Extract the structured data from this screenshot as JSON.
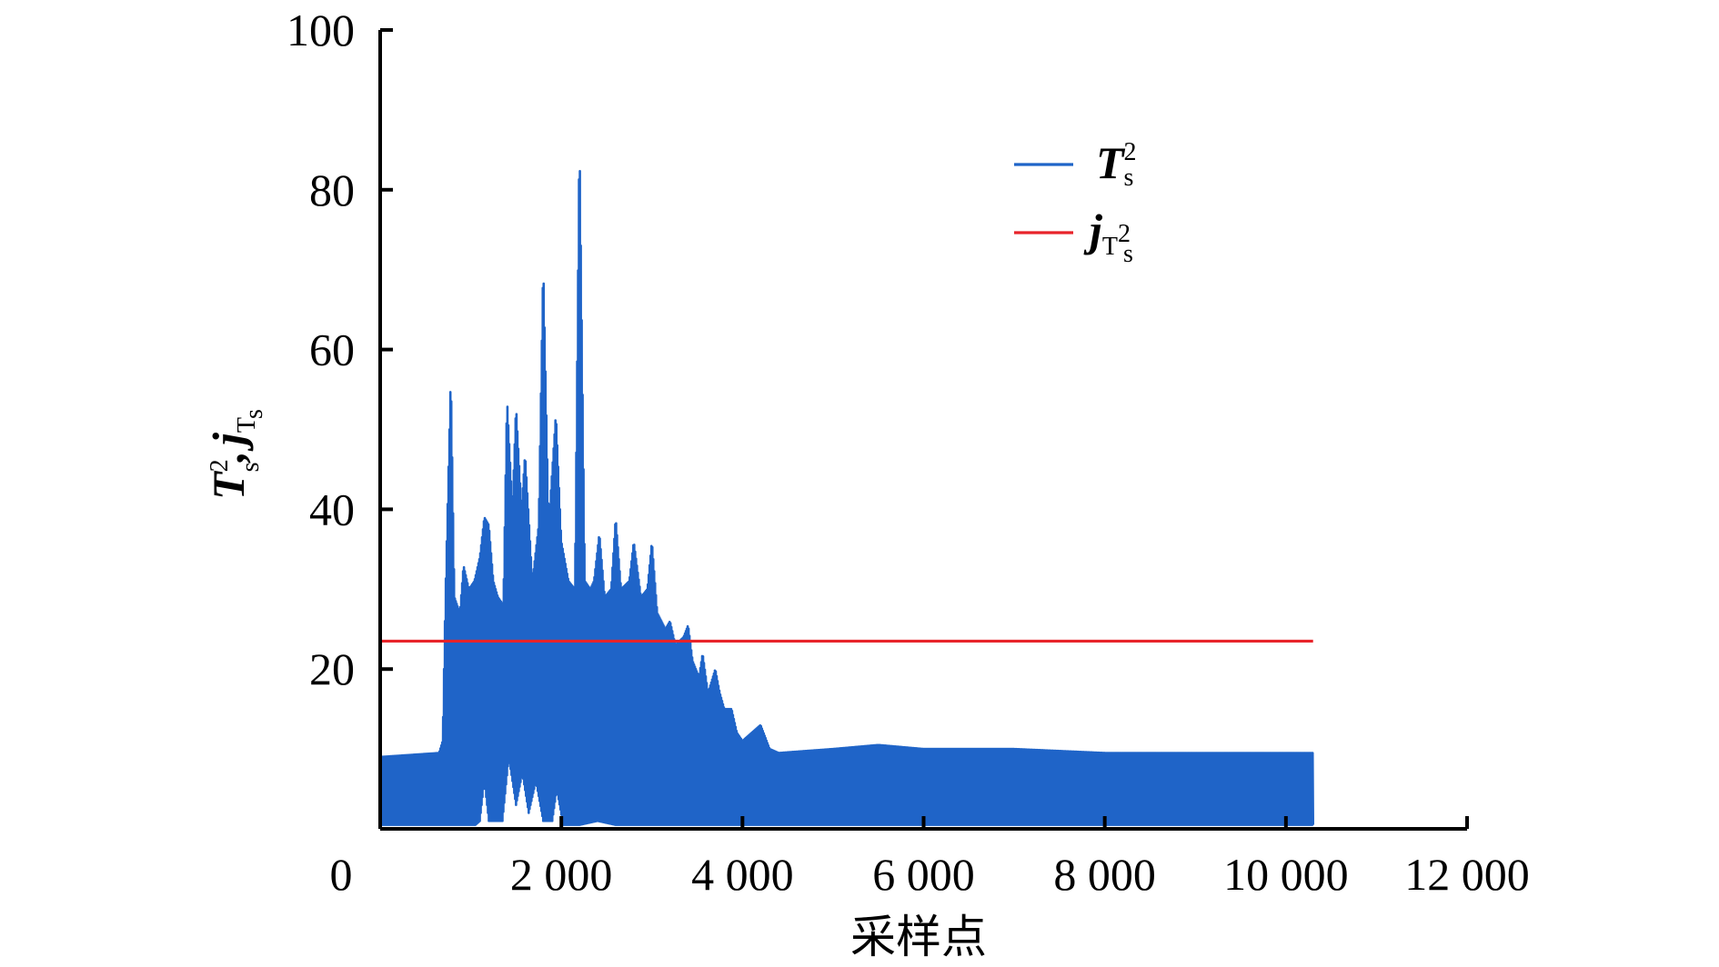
{
  "chart_data": {
    "type": "line",
    "title": "",
    "xlabel": "采样点",
    "ylabel": "T_s^2 , j_Ts^2",
    "xlim": [
      0,
      12000
    ],
    "ylim": [
      0,
      100
    ],
    "x_ticks": [
      {
        "value": 0,
        "label": "0"
      },
      {
        "value": 2000,
        "label": "2 000"
      },
      {
        "value": 4000,
        "label": "4 000"
      },
      {
        "value": 6000,
        "label": "6 000"
      },
      {
        "value": 8000,
        "label": "8 000"
      },
      {
        "value": 10000,
        "label": "10 000"
      },
      {
        "value": 12000,
        "label": "12 000"
      }
    ],
    "y_ticks": [
      {
        "value": 20,
        "label": "20"
      },
      {
        "value": 40,
        "label": "40"
      },
      {
        "value": 60,
        "label": "60"
      },
      {
        "value": 80,
        "label": "80"
      },
      {
        "value": 100,
        "label": "100"
      }
    ],
    "grid": false,
    "legend_position": "top-right",
    "series": [
      {
        "name": "T_s^2",
        "legend_main": "T",
        "legend_sub": "s",
        "legend_sup": "2",
        "color": "#1f64c8",
        "kind": "oscillating-envelope",
        "x_range": [
          0,
          10300
        ],
        "upper_envelope": [
          [
            0,
            9
          ],
          [
            650,
            9.5
          ],
          [
            690,
            11
          ],
          [
            720,
            29
          ],
          [
            780,
            57
          ],
          [
            820,
            29
          ],
          [
            880,
            27
          ],
          [
            920,
            33
          ],
          [
            980,
            30
          ],
          [
            1040,
            31
          ],
          [
            1100,
            34
          ],
          [
            1150,
            39
          ],
          [
            1200,
            38
          ],
          [
            1250,
            31
          ],
          [
            1300,
            29
          ],
          [
            1360,
            28
          ],
          [
            1400,
            54
          ],
          [
            1460,
            40
          ],
          [
            1500,
            53
          ],
          [
            1560,
            40
          ],
          [
            1600,
            47
          ],
          [
            1680,
            31
          ],
          [
            1750,
            38
          ],
          [
            1800,
            71
          ],
          [
            1860,
            38
          ],
          [
            1900,
            45
          ],
          [
            1940,
            52
          ],
          [
            2000,
            36
          ],
          [
            2080,
            31
          ],
          [
            2150,
            30
          ],
          [
            2200,
            87
          ],
          [
            2260,
            31
          ],
          [
            2320,
            30
          ],
          [
            2360,
            31
          ],
          [
            2420,
            37
          ],
          [
            2480,
            29
          ],
          [
            2550,
            30
          ],
          [
            2600,
            39
          ],
          [
            2660,
            30
          ],
          [
            2750,
            31
          ],
          [
            2800,
            36
          ],
          [
            2880,
            29
          ],
          [
            2950,
            30
          ],
          [
            3000,
            36
          ],
          [
            3060,
            27
          ],
          [
            3150,
            25
          ],
          [
            3200,
            26
          ],
          [
            3260,
            23
          ],
          [
            3350,
            24
          ],
          [
            3400,
            25.5
          ],
          [
            3450,
            21
          ],
          [
            3520,
            19
          ],
          [
            3560,
            22
          ],
          [
            3620,
            17
          ],
          [
            3700,
            20
          ],
          [
            3750,
            17
          ],
          [
            3800,
            15
          ],
          [
            3880,
            15
          ],
          [
            3940,
            12
          ],
          [
            4000,
            11
          ],
          [
            4100,
            12
          ],
          [
            4200,
            13
          ],
          [
            4300,
            10
          ],
          [
            4400,
            9.5
          ],
          [
            5000,
            10
          ],
          [
            5500,
            10.5
          ],
          [
            6000,
            10
          ],
          [
            6500,
            10
          ],
          [
            7000,
            10
          ],
          [
            8000,
            9.5
          ],
          [
            9000,
            9.5
          ],
          [
            9500,
            9.5
          ],
          [
            10000,
            9.5
          ],
          [
            10300,
            9.5
          ]
        ],
        "lower_envelope": [
          [
            0,
            0.5
          ],
          [
            1050,
            0.5
          ],
          [
            1100,
            1
          ],
          [
            1150,
            6
          ],
          [
            1200,
            1
          ],
          [
            1350,
            1
          ],
          [
            1420,
            9
          ],
          [
            1500,
            3
          ],
          [
            1570,
            7
          ],
          [
            1640,
            2
          ],
          [
            1720,
            6
          ],
          [
            1800,
            1
          ],
          [
            1900,
            1
          ],
          [
            1950,
            5
          ],
          [
            2020,
            0.5
          ],
          [
            2200,
            0.5
          ],
          [
            2400,
            1
          ],
          [
            2600,
            0.5
          ],
          [
            10300,
            0.5
          ]
        ]
      },
      {
        "name": "j_Ts^2",
        "legend_main": "j",
        "legend_sub": "T",
        "legend_subsub": "s",
        "legend_subsup": "2",
        "color": "#e8232a",
        "x": [
          0,
          10300
        ],
        "y": [
          23.5,
          23.5
        ]
      }
    ]
  }
}
